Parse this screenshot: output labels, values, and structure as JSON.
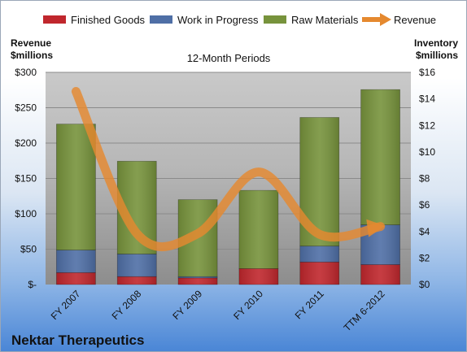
{
  "chart_data": {
    "type": "bar",
    "subtype": "stacked bar with line overlay",
    "title": "12-Month Periods",
    "company": "Nektar Therapeutics",
    "categories": [
      "FY 2007",
      "FY 2008",
      "FY 2009",
      "FY 2010",
      "FY 2011",
      "TTM 6-2012"
    ],
    "left_axis": {
      "label_line1": "Revenue",
      "label_line2": "$millions",
      "ylim": [
        0,
        300
      ],
      "ticks": [
        0,
        50,
        100,
        150,
        200,
        250,
        300
      ],
      "tick_labels": [
        "$-",
        "$50",
        "$100",
        "$150",
        "$200",
        "$250",
        "$300"
      ]
    },
    "right_axis": {
      "label_line1": "Inventory",
      "label_line2": "$millions",
      "ylim": [
        0,
        16
      ],
      "ticks": [
        0,
        2,
        4,
        6,
        8,
        10,
        12,
        14,
        16
      ],
      "tick_labels": [
        "$0",
        "$2",
        "$4",
        "$6",
        "$8",
        "$10",
        "$12",
        "$14",
        "$16"
      ]
    },
    "series": [
      {
        "name": "Finished Goods",
        "axis": "right",
        "color": "#c0272d",
        "values": [
          0.9,
          0.6,
          0.5,
          1.2,
          1.7,
          1.5
        ]
      },
      {
        "name": "Work in Progress",
        "axis": "right",
        "color": "#4f6fa6",
        "values": [
          1.7,
          1.7,
          0.1,
          0.0,
          1.2,
          3.0
        ]
      },
      {
        "name": "Raw Materials",
        "axis": "right",
        "color": "#77933c",
        "values": [
          9.5,
          7.0,
          5.8,
          5.9,
          9.7,
          10.2
        ]
      },
      {
        "name": "Revenue",
        "axis": "left",
        "color": "#e5892f",
        "values": [
          273,
          72,
          72,
          159,
          71,
          82
        ]
      }
    ],
    "grid": true,
    "legend_position": "top"
  }
}
